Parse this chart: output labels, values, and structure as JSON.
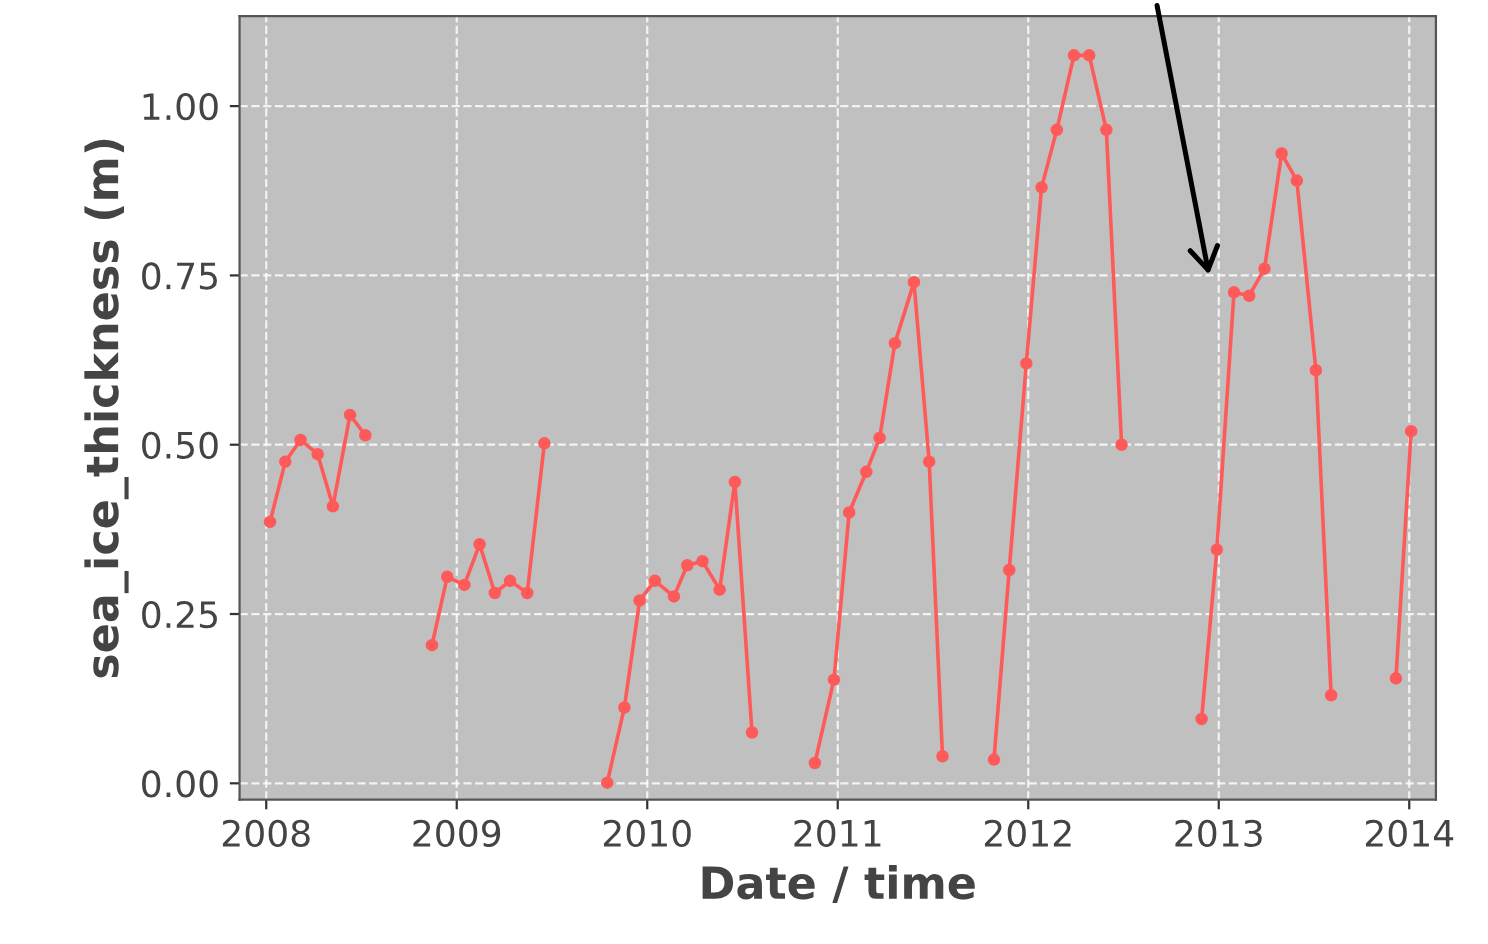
{
  "chart_data": {
    "type": "line",
    "xlabel": "Date / time",
    "ylabel": "sea_ice_thickness (m)",
    "xlim": [
      2007.86,
      2014.14
    ],
    "xticks": [
      2008,
      2009,
      2010,
      2011,
      2012,
      2013,
      2014
    ],
    "ylim": [
      -0.024,
      1.133
    ],
    "yticks": [
      {
        "value": 0,
        "label": "0.00"
      },
      {
        "value": 0.25,
        "label": "0.25"
      },
      {
        "value": 0.5,
        "label": "0.50"
      },
      {
        "value": 0.75,
        "label": "0.75"
      },
      {
        "value": 1,
        "label": "1.00"
      }
    ],
    "grid": true,
    "marker": "circle",
    "line_style": "solid",
    "series": [
      {
        "color": "#ff5a5a",
        "x": [
          2008.02,
          2008.1,
          2008.18,
          2008.27,
          2008.35,
          2008.44,
          2008.52,
          2008.7,
          2008.87,
          2008.95,
          2009.04,
          2009.12,
          2009.2,
          2009.28,
          2009.37,
          2009.46,
          2009.62,
          2009.79,
          2009.88,
          2009.96,
          2010.04,
          2010.14,
          2010.21,
          2010.29,
          2010.38,
          2010.46,
          2010.55,
          2010.7,
          2010.88,
          2010.98,
          2011.06,
          2011.15,
          2011.22,
          2011.3,
          2011.4,
          2011.48,
          2011.55,
          2011.7,
          2011.82,
          2011.9,
          2011.99,
          2012.07,
          2012.15,
          2012.24,
          2012.32,
          2012.41,
          2012.49,
          2012.7,
          2012.91,
          2012.99,
          2013.08,
          2013.16,
          2013.24,
          2013.33,
          2013.41,
          2013.51,
          2013.59,
          2013.75,
          2013.93,
          2014.01
        ],
        "values": [
          0.386,
          0.475,
          0.507,
          0.486,
          0.409,
          0.544,
          0.514,
          null,
          0.204,
          0.305,
          0.293,
          0.353,
          0.281,
          0.299,
          0.281,
          0.502,
          null,
          0.001,
          0.112,
          0.27,
          0.299,
          0.276,
          0.322,
          0.328,
          0.286,
          0.445,
          0.075,
          null,
          0.03,
          0.153,
          0.4,
          0.46,
          0.51,
          0.65,
          0.74,
          0.475,
          0.04,
          null,
          0.035,
          0.315,
          0.62,
          0.88,
          0.965,
          1.075,
          1.075,
          0.965,
          0.5,
          null,
          0.095,
          0.345,
          0.725,
          0.72,
          0.76,
          0.93,
          0.89,
          0.61,
          0.13,
          null,
          0.155,
          0.52
        ]
      }
    ]
  }
}
